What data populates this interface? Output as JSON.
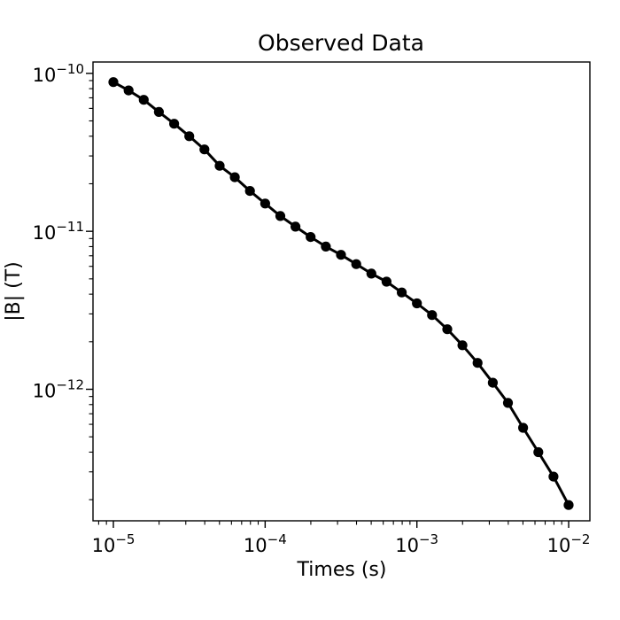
{
  "figure": {
    "background": "#ffffff"
  },
  "chart_data": {
    "type": "line",
    "title": "Observed Data",
    "xlabel": "Times (s)",
    "ylabel": "|B| (T)",
    "xscale": "log",
    "yscale": "log",
    "grid": false,
    "legend": "none",
    "series_color": "#000000",
    "marker": "circle",
    "xlim": [
      7.34e-06,
      0.0138
    ],
    "ylim": [
      1.47e-13,
      1.18e-10
    ],
    "x_ticks": [
      {
        "value": 1e-05,
        "base": "10",
        "exp": "−5"
      },
      {
        "value": 0.0001,
        "base": "10",
        "exp": "−4"
      },
      {
        "value": 0.001,
        "base": "10",
        "exp": "−3"
      },
      {
        "value": 0.01,
        "base": "10",
        "exp": "−2"
      }
    ],
    "y_ticks": [
      {
        "value": 1e-10,
        "base": "10",
        "exp": "−10"
      },
      {
        "value": 1e-11,
        "base": "10",
        "exp": "−11"
      },
      {
        "value": 1e-12,
        "base": "10",
        "exp": "−12"
      }
    ],
    "x": [
      1e-05,
      1.259e-05,
      1.585e-05,
      1.995e-05,
      2.512e-05,
      3.162e-05,
      3.981e-05,
      5.012e-05,
      6.31e-05,
      7.943e-05,
      0.0001,
      0.0001259,
      0.0001585,
      0.0001995,
      0.0002512,
      0.0003162,
      0.0003981,
      0.0005012,
      0.000631,
      0.0007943,
      0.001,
      0.001259,
      0.001585,
      0.001995,
      0.002512,
      0.003162,
      0.003981,
      0.005012,
      0.00631,
      0.007943,
      0.01
    ],
    "y": [
      8.8e-11,
      7.8e-11,
      6.8e-11,
      5.7e-11,
      4.8e-11,
      4e-11,
      3.3e-11,
      2.6e-11,
      2.2e-11,
      1.8e-11,
      1.5e-11,
      1.25e-11,
      1.07e-11,
      9.2e-12,
      8e-12,
      7.1e-12,
      6.2e-12,
      5.4e-12,
      4.8e-12,
      4.1e-12,
      3.5e-12,
      2.95e-12,
      2.4e-12,
      1.9e-12,
      1.47e-12,
      1.1e-12,
      8.2e-13,
      5.7e-13,
      4e-13,
      2.8e-13,
      1.85e-13
    ]
  }
}
